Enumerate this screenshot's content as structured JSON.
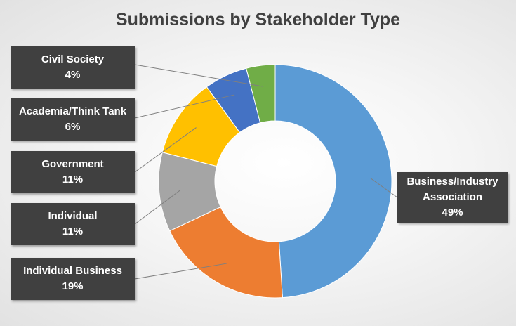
{
  "chart_data": {
    "type": "pie",
    "variant": "donut",
    "title": "Submissions by Stakeholder Type",
    "series": [
      {
        "name": "Business/Industry Association",
        "label_lines": [
          "Business/Industry",
          "Association"
        ],
        "value": 49,
        "value_label": "49%",
        "color": "#5B9BD5"
      },
      {
        "name": "Individual Business",
        "label_lines": [
          "Individual Business"
        ],
        "value": 19,
        "value_label": "19%",
        "color": "#ED7D31"
      },
      {
        "name": "Individual",
        "label_lines": [
          "Individual"
        ],
        "value": 11,
        "value_label": "11%",
        "color": "#A5A5A5"
      },
      {
        "name": "Government",
        "label_lines": [
          "Government"
        ],
        "value": 11,
        "value_label": "11%",
        "color": "#FFC000"
      },
      {
        "name": "Academia/Think Tank",
        "label_lines": [
          "Academia/Think Tank"
        ],
        "value": 6,
        "value_label": "6%",
        "color": "#4472C4"
      },
      {
        "name": "Civil Society",
        "label_lines": [
          "Civil Society"
        ],
        "value": 4,
        "value_label": "4%",
        "color": "#70AD47"
      }
    ],
    "legend": "none",
    "data_labels": "callout"
  }
}
